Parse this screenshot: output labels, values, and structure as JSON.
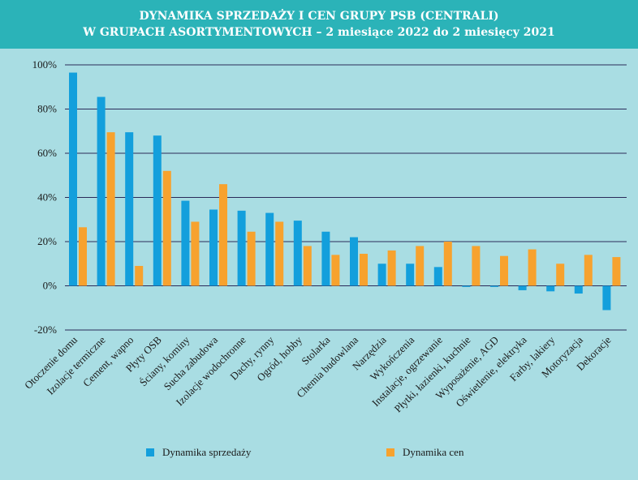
{
  "colors": {
    "title_band": "#2bb3b8",
    "plot_bg": "#a9dde3",
    "grid": "#2a2a5a",
    "sales": "#139fdc",
    "prices": "#f7a22e"
  },
  "chart_data": {
    "type": "bar",
    "title_lines": [
      "DYNAMIKA SPRZEDAŻY I CEN GRUPY PSB (CENTRALI)",
      "W GRUPACH ASORTYMENTOWYCH  – 2 miesiące 2022 do 2 miesięcy 2021"
    ],
    "categories": [
      "Otoczenie domu",
      "Izolacje termiczne",
      "Cement, wapno",
      "Płyty OSB",
      "Ściany, kominy",
      "Sucha zabudowa",
      "Izolacje wodochronne",
      "Dachy, rynny",
      "Ogród, hobby",
      "Stolarka",
      "Chemia budowlana",
      "Narzędzia",
      "Wykończenia",
      "Instalacje, ogrzewanie",
      "Płytki, łazienki, kuchnie",
      "Wyposażenie, AGD",
      "Oświetlenie, elektryka",
      "Farby, lakiery",
      "Motoryzacja",
      "Dekoracje"
    ],
    "series": [
      {
        "name": "Dynamika sprzedaży",
        "values": [
          96.5,
          85.5,
          69.5,
          68,
          38.5,
          34.5,
          34,
          33,
          29.5,
          24.5,
          22,
          10,
          10,
          8.5,
          -0.5,
          -0.5,
          -2,
          -2.5,
          -3.5,
          -11
        ]
      },
      {
        "name": "Dynamika cen",
        "values": [
          26.5,
          69.5,
          9,
          52,
          29,
          46,
          24.5,
          29,
          18,
          14,
          14.5,
          16,
          18,
          20,
          18,
          13.5,
          16.5,
          10,
          14,
          13
        ]
      }
    ],
    "ylim": [
      -20,
      100
    ],
    "yticks": [
      -20,
      0,
      20,
      40,
      60,
      80,
      100
    ],
    "ytick_labels": [
      "-20%",
      "0%",
      "20%",
      "40%",
      "60%",
      "80%",
      "100%"
    ],
    "grid": true,
    "legend_position": "bottom"
  }
}
